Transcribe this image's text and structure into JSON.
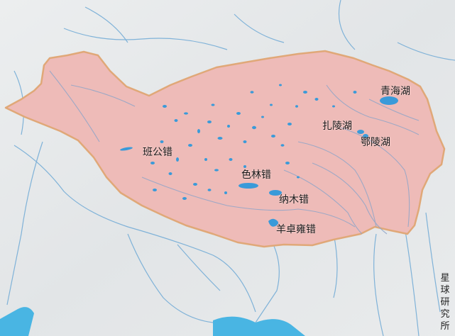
{
  "colors": {
    "background": "#e6e8ea",
    "plateau_fill": "#eebbb8",
    "plateau_border": "#e0a878",
    "river": "#7fb2d8",
    "lake": "#3a9ad9",
    "sea": "#49b5e3"
  },
  "lakes": [
    {
      "id": "qinghai",
      "label": "青海湖"
    },
    {
      "id": "zhaling",
      "label": "扎陵湖"
    },
    {
      "id": "eling",
      "label": "鄂陵湖"
    },
    {
      "id": "bangong",
      "label": "班公错"
    },
    {
      "id": "selin",
      "label": "色林错"
    },
    {
      "id": "namu",
      "label": "纳木错"
    },
    {
      "id": "yangzhuoyong",
      "label": "羊卓雍错"
    }
  ],
  "credit": "星球研究所"
}
